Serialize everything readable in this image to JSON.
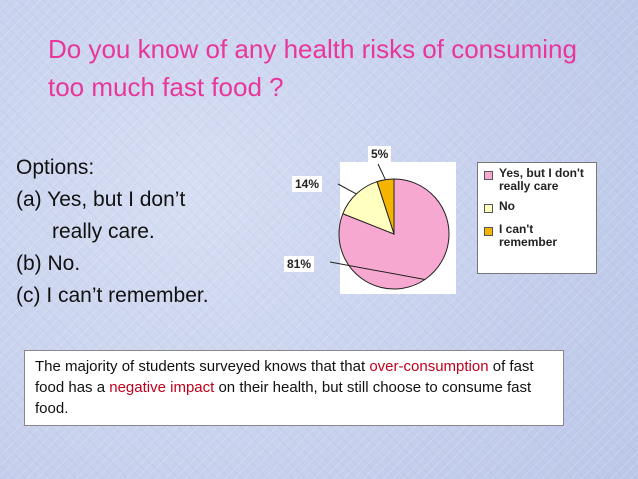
{
  "title": "Do you know of any health risks of consuming too much fast food ?",
  "options": {
    "heading": "Options:",
    "a_line1": "(a) Yes, but I don’t",
    "a_line2": "really care.",
    "b": "(b) No.",
    "c": "(c) I can’t remember."
  },
  "chart_data": {
    "type": "pie",
    "categories": [
      "Yes, but I don't really care",
      "No",
      "I can't remember"
    ],
    "values": [
      81,
      14,
      5
    ],
    "data_labels": [
      "81%",
      "14%",
      "5%"
    ],
    "colors": [
      "#f7a8d0",
      "#ffffc0",
      "#f5b400"
    ],
    "legend_placement": "right",
    "title": ""
  },
  "legend": {
    "item1": "Yes, but I don't really care",
    "item2": "No",
    "item3": "I can't remember"
  },
  "note": {
    "part1": "The majority of students surveyed knows that that ",
    "hl1": "over-consumption",
    "part2": " of fast food has a ",
    "hl2": "negative impact",
    "part3": " on their health, but still choose to consume fast food."
  }
}
